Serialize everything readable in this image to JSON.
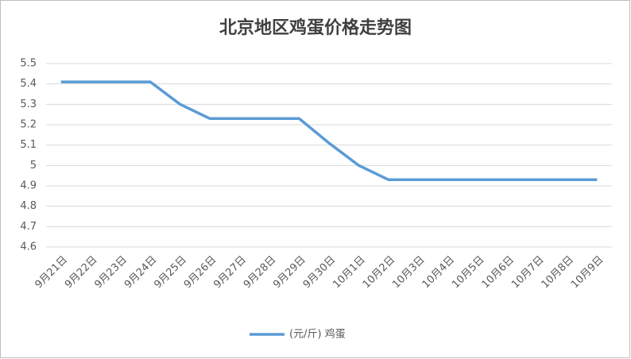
{
  "chart_data": {
    "type": "line",
    "title": "北京地区鸡蛋价格走势图",
    "categories": [
      "9月21日",
      "9月22日",
      "9月23日",
      "9月24日",
      "9月25日",
      "9月26日",
      "9月27日",
      "9月28日",
      "9月29日",
      "9月30日",
      "10月1日",
      "10月2日",
      "10月3日",
      "10月4日",
      "10月5日",
      "10月6日",
      "10月7日",
      "10月8日",
      "10月9日"
    ],
    "series": [
      {
        "name": "(元/斤) 鸡蛋",
        "color": "#5b9bd5",
        "values": [
          5.41,
          5.41,
          5.41,
          5.41,
          5.3,
          5.23,
          5.23,
          5.23,
          5.23,
          5.11,
          5.0,
          4.93,
          4.93,
          4.93,
          4.93,
          4.93,
          4.93,
          4.93,
          4.93
        ]
      }
    ],
    "ylim": [
      4.6,
      5.5
    ],
    "yticks": [
      4.6,
      4.7,
      4.8,
      4.9,
      5,
      5.1,
      5.2,
      5.3,
      5.4,
      5.5
    ],
    "grid": true,
    "legend": "bottom"
  }
}
